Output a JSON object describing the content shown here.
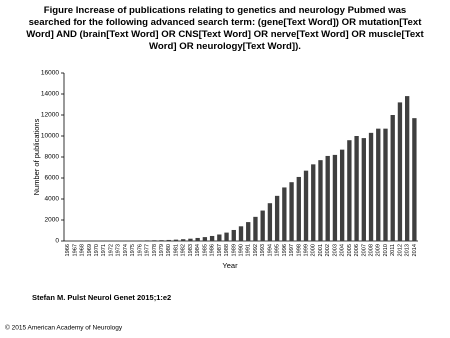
{
  "chart_data": {
    "type": "bar",
    "title": "Figure Increase of publications relating to genetics and neurology Pubmed was searched for the following advanced search term: (gene[Text Word]) OR mutation[Text Word] AND (brain[Text Word] OR CNS[Text Word] OR nerve[Text Word] OR muscle[Text Word] OR neurology[Text Word]).",
    "x_label": "Year",
    "y_label": "Number of publications",
    "categories": [
      "1966",
      "1967",
      "1968",
      "1969",
      "1970",
      "1971",
      "1972",
      "1973",
      "1974",
      "1975",
      "1976",
      "1977",
      "1978",
      "1979",
      "1980",
      "1981",
      "1982",
      "1983",
      "1984",
      "1985",
      "1986",
      "1987",
      "1988",
      "1989",
      "1990",
      "1991",
      "1992",
      "1993",
      "1994",
      "1995",
      "1996",
      "1997",
      "1998",
      "1999",
      "2000",
      "2001",
      "2002",
      "2003",
      "2004",
      "2005",
      "2006",
      "2007",
      "2008",
      "2009",
      "2010",
      "2011",
      "2012",
      "2013",
      "2014"
    ],
    "values": [
      10,
      10,
      20,
      20,
      20,
      30,
      30,
      30,
      40,
      40,
      50,
      60,
      70,
      80,
      100,
      130,
      170,
      220,
      290,
      370,
      480,
      620,
      800,
      1050,
      1400,
      1800,
      2300,
      2900,
      3600,
      4300,
      5100,
      5600,
      6100,
      6700,
      7300,
      7700,
      8100,
      8200,
      8700,
      9600,
      10000,
      9800,
      10300,
      10700,
      10700,
      12000,
      13200,
      13800,
      11700
    ],
    "color": "#3f3f3f",
    "ylim": [
      0,
      16000
    ],
    "yticks": [
      0,
      2000,
      4000,
      6000,
      8000,
      10000,
      12000,
      14000,
      16000
    ],
    "grid": false,
    "source": "Stefan M. Pulst Neurol Genet 2015;1:e2",
    "copyright": "© 2015 American Academy of Neurology"
  }
}
